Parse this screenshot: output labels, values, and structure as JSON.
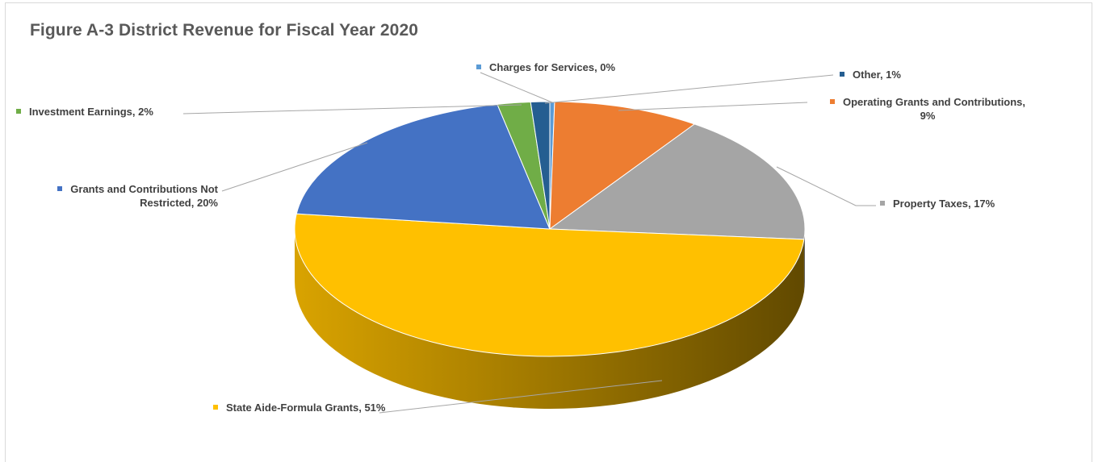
{
  "chart_data": {
    "type": "pie",
    "title": "Figure A-3 District Revenue for Fiscal Year 2020",
    "slices": [
      {
        "name": "Charges for Services",
        "label": "Charges for Services, 0%",
        "value": 0.3,
        "color": "#5b9bd5"
      },
      {
        "name": "Operating Grants and Contributions",
        "label": "Operating Grants and Contributions, 9%",
        "label_lines": [
          "Operating Grants and Contributions,",
          "9%"
        ],
        "value": 9.3,
        "color": "#ed7d31"
      },
      {
        "name": "Property Taxes",
        "label": "Property Taxes, 17%",
        "value": 16.7,
        "color": "#a5a5a5"
      },
      {
        "name": "State Aide-Formula Grants",
        "label": "State Aide-Formula Grants, 51%",
        "value": 50.6,
        "color": "#ffc000"
      },
      {
        "name": "Grants and Contributions Not Restricted",
        "label": "Grants and Contributions Not Restricted, 20%",
        "label_lines": [
          "Grants and Contributions Not",
          "Restricted, 20%"
        ],
        "value": 19.8,
        "color": "#4472c4"
      },
      {
        "name": "Investment Earnings",
        "label": "Investment Earnings, 2%",
        "value": 2.1,
        "color": "#70ad47"
      },
      {
        "name": "Other",
        "label": "Other, 1%",
        "value": 1.2,
        "color": "#255e91"
      }
    ],
    "style": "3d-pie",
    "legend": "none",
    "data_labels": "outside with leader lines"
  }
}
